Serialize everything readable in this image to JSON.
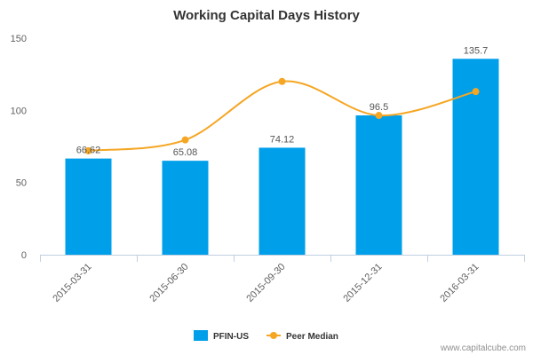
{
  "chart_data": {
    "type": "bar",
    "title": "Working Capital Days History",
    "categories": [
      "2015-03-31",
      "2015-06-30",
      "2015-09-30",
      "2015-12-31",
      "2016-03-31"
    ],
    "series": [
      {
        "name": "PFIN-US",
        "type": "bar",
        "values": [
          66.62,
          65.08,
          74.12,
          96.5,
          135.7
        ],
        "labels": [
          "66.62",
          "65.08",
          "74.12",
          "96.5",
          "135.7"
        ],
        "color": "#009FEA"
      },
      {
        "name": "Peer Median",
        "type": "line",
        "smooth": true,
        "values": [
          72,
          79.5,
          120,
          96.5,
          113
        ],
        "color": "#F5A623"
      }
    ],
    "ylim": [
      0,
      150
    ],
    "yticks": [
      0,
      50,
      100,
      150
    ],
    "xlabel": "",
    "ylabel": "",
    "grid": false,
    "legend_position": "bottom-center"
  },
  "credit": "www.capitalcube.com"
}
